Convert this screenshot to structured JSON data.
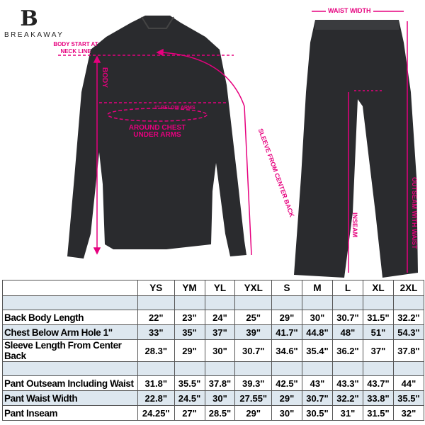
{
  "brand": {
    "name": "BREAKAWAY",
    "mark": "B"
  },
  "annotations": {
    "body_start": "BODY START AT NECK LINE",
    "body": "BODY",
    "below_arms": "1\" BELOW ARMS",
    "chest": "AROUND CHEST UNDER ARMS",
    "sleeve": "SLEEVE FROM CENTER BACK",
    "waist_width": "WAIST WIDTH",
    "inseam": "INSEAM",
    "outseam": "OUTSEAM WITH WAIST"
  },
  "colors": {
    "accent": "#e6007e",
    "garment": "#2a2b2e",
    "row_alt": "#dde7ef"
  },
  "table": {
    "sizes": [
      "YS",
      "YM",
      "YL",
      "YXL",
      "S",
      "M",
      "L",
      "XL",
      "2XL"
    ],
    "rows": [
      {
        "label": "Back Body Length",
        "values": [
          "22\"",
          "23\"",
          "24\"",
          "25\"",
          "29\"",
          "30\"",
          "30.7\"",
          "31.5\"",
          "32.2\""
        ]
      },
      {
        "label": "Chest Below Arm Hole 1\"",
        "values": [
          "33\"",
          "35\"",
          "37\"",
          "39\"",
          "41.7\"",
          "44.8\"",
          "48\"",
          "51\"",
          "54.3\""
        ]
      },
      {
        "label": "Sleeve Length From Center Back",
        "values": [
          "28.3\"",
          "29\"",
          "30\"",
          "30.7\"",
          "34.6\"",
          "35.4\"",
          "36.2\"",
          "37\"",
          "37.8\""
        ]
      },
      {
        "label": "Pant Outseam Including Waist",
        "values": [
          "31.8\"",
          "35.5\"",
          "37.8\"",
          "39.3\"",
          "42.5\"",
          "43\"",
          "43.3\"",
          "43.7\"",
          "44\""
        ]
      },
      {
        "label": "Pant Waist Width",
        "values": [
          "22.8\"",
          "24.5\"",
          "30\"",
          "27.55\"",
          "29\"",
          "30.7\"",
          "32.2\"",
          "33.8\"",
          "35.5\""
        ]
      },
      {
        "label": "Pant Inseam",
        "values": [
          "24.25\"",
          "27\"",
          "28.5\"",
          "29\"",
          "30\"",
          "30.5\"",
          "31\"",
          "31.5\"",
          "32\""
        ]
      }
    ]
  }
}
